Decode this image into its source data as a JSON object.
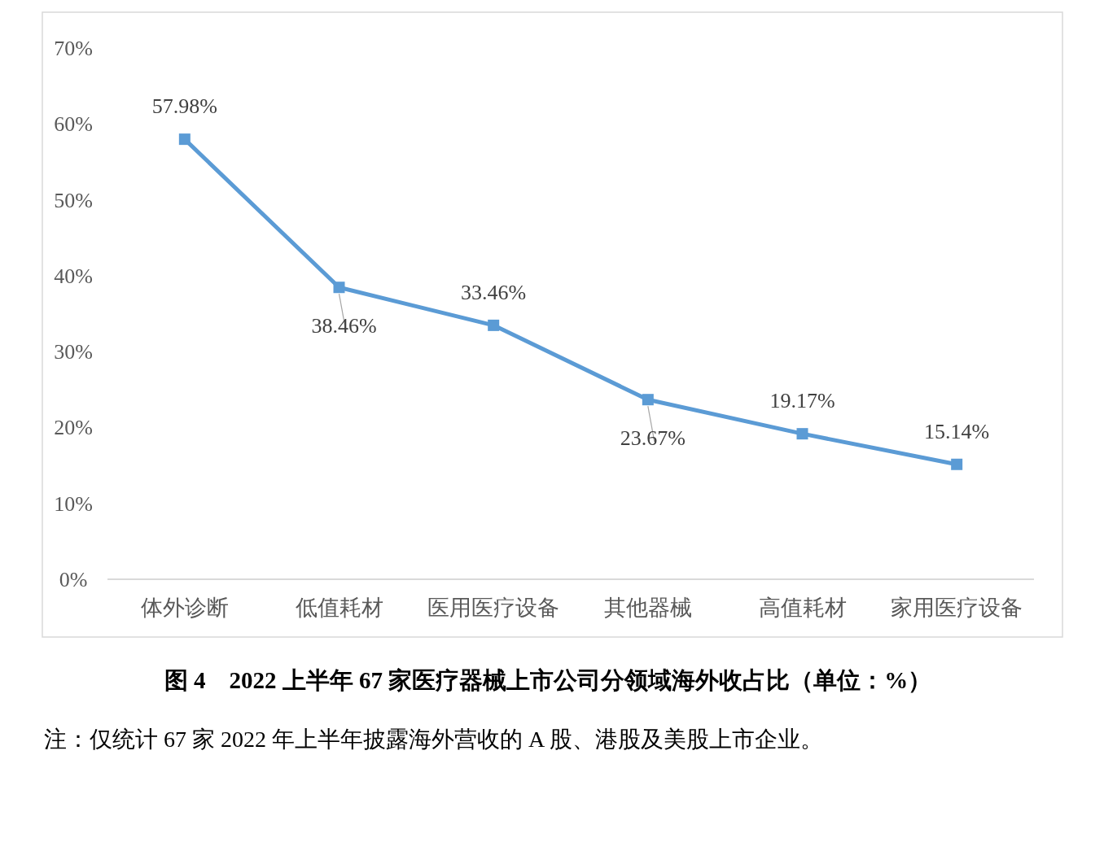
{
  "chart_data": {
    "type": "line",
    "title": "图 4　2022 上半年 67 家医疗器械上市公司分领域海外收占比（单位：%）",
    "categories": [
      "体外诊断",
      "低值耗材",
      "医用医疗设备",
      "其他器械",
      "高值耗材",
      "家用医疗设备"
    ],
    "values": [
      57.98,
      38.46,
      33.46,
      23.67,
      19.17,
      15.14
    ],
    "value_labels": [
      "57.98%",
      "38.46%",
      "33.46%",
      "23.67%",
      "19.17%",
      "15.14%"
    ],
    "color": "#5b9bd5",
    "marker": "square",
    "line_style": "solid",
    "grid": false,
    "ylim": [
      0,
      70
    ],
    "yticks": [
      {
        "value": 0,
        "label": "0%"
      },
      {
        "value": 10,
        "label": "10%"
      },
      {
        "value": 20,
        "label": "20%"
      },
      {
        "value": 30,
        "label": "30%"
      },
      {
        "value": 40,
        "label": "40%"
      },
      {
        "value": 50,
        "label": "50%"
      },
      {
        "value": 60,
        "label": "60%"
      },
      {
        "value": 70,
        "label": "70%"
      }
    ],
    "annotations": [
      "注：仅统计 67 家 2022 年上半年披露海外营收的 A 股、港股及美股上市企业。"
    ]
  }
}
